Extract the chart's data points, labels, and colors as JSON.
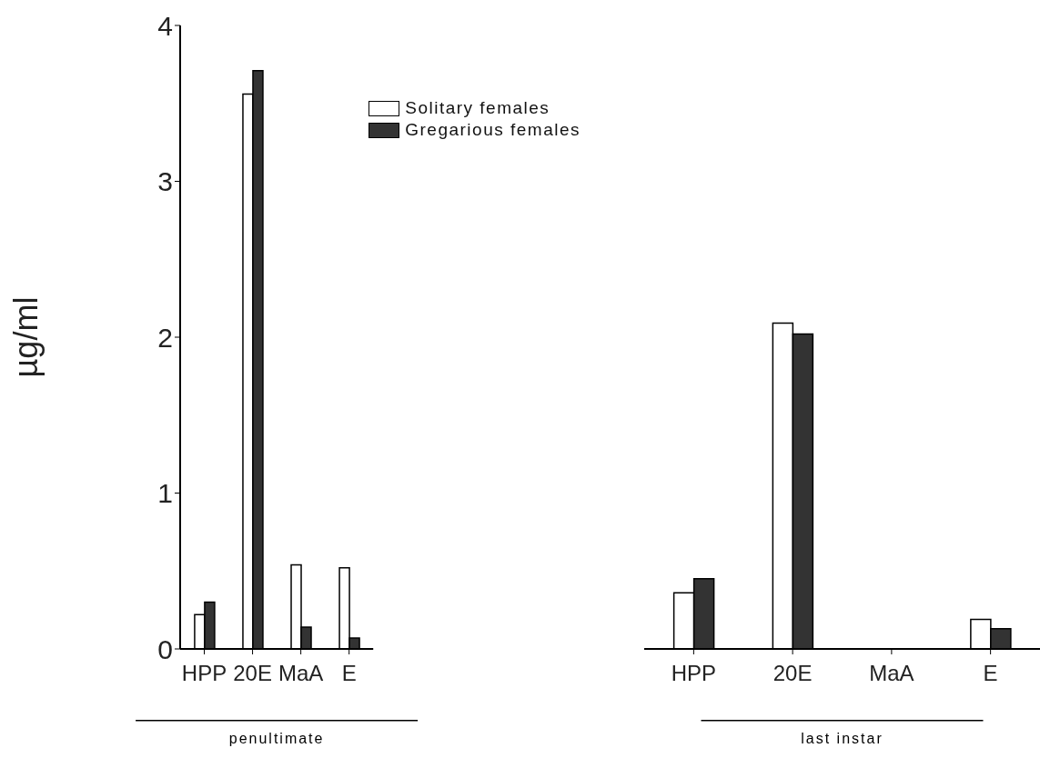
{
  "chart_data": [
    {
      "type": "bar",
      "xlabel": "penultimate",
      "ylabel": "µg/ml",
      "categories": [
        "HPP",
        "20E",
        "MaA",
        "E"
      ],
      "series": [
        {
          "name": "Solitary females",
          "color": "#ffffff",
          "values": [
            0.22,
            3.56,
            0.54,
            0.52
          ]
        },
        {
          "name": "Gregarious females",
          "color": "#333333",
          "values": [
            0.3,
            3.71,
            0.14,
            0.07
          ]
        }
      ],
      "ylim": [
        0,
        4
      ],
      "yticks": [
        0,
        1,
        2,
        3,
        4
      ],
      "grid": false,
      "legend": "top right"
    },
    {
      "type": "bar",
      "xlabel": "last instar",
      "categories": [
        "HPP",
        "20E",
        "MaA",
        "E"
      ],
      "series": [
        {
          "color": "#ffffff",
          "values": [
            0.36,
            2.09,
            null,
            0.19
          ]
        },
        {
          "color": "#333333",
          "values": [
            0.45,
            2.02,
            null,
            0.13
          ]
        }
      ],
      "ylim": [
        0,
        4
      ],
      "yticks": [
        0,
        1,
        2,
        3,
        4
      ],
      "grid": false,
      "legend": false,
      "tick_labels": "x"
    }
  ]
}
